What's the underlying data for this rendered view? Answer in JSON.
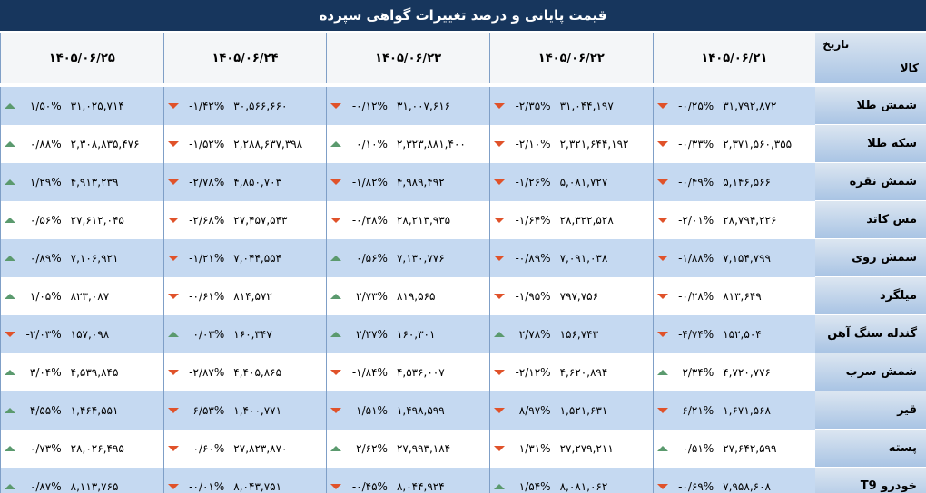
{
  "title": "قیمت پایانی و درصد تغییرات گواهی سپرده",
  "header": {
    "date_label": "تاریخ",
    "item_label": "کالا",
    "dates": [
      "۱۴۰۵/۰۶/۲۱",
      "۱۴۰۵/۰۶/۲۲",
      "۱۴۰۵/۰۶/۲۳",
      "۱۴۰۵/۰۶/۲۴",
      "۱۴۰۵/۰۶/۲۵"
    ]
  },
  "rows": [
    {
      "name": "شمش طلا",
      "cells": [
        {
          "price": "۳۱,۷۹۲,۸۷۲",
          "change": "-۰/۲۵%"
        },
        {
          "price": "۳۱,۰۴۴,۱۹۷",
          "change": "-۲/۳۵%"
        },
        {
          "price": "۳۱,۰۰۷,۶۱۶",
          "change": "-۰/۱۲%"
        },
        {
          "price": "۳۰,۵۶۶,۶۶۰",
          "change": "-۱/۴۲%"
        },
        {
          "price": "۳۱,۰۲۵,۷۱۴",
          "change": "۱/۵۰%"
        }
      ]
    },
    {
      "name": "سکه طلا",
      "cells": [
        {
          "price": "۲,۳۷۱,۵۶۰,۳۵۵",
          "change": "-۰/۳۳%"
        },
        {
          "price": "۲,۳۲۱,۶۴۴,۱۹۲",
          "change": "-۲/۱۰%"
        },
        {
          "price": "۲,۳۲۳,۸۸۱,۴۰۰",
          "change": "۰/۱۰%"
        },
        {
          "price": "۲,۲۸۸,۶۳۷,۳۹۸",
          "change": "-۱/۵۲%"
        },
        {
          "price": "۲,۳۰۸,۸۳۵,۴۷۶",
          "change": "۰/۸۸%"
        }
      ]
    },
    {
      "name": "شمش نقره",
      "cells": [
        {
          "price": "۵,۱۴۶,۵۶۶",
          "change": "-۰/۴۹%"
        },
        {
          "price": "۵,۰۸۱,۷۲۷",
          "change": "-۱/۲۶%"
        },
        {
          "price": "۴,۹۸۹,۴۹۲",
          "change": "-۱/۸۲%"
        },
        {
          "price": "۴,۸۵۰,۷۰۳",
          "change": "-۲/۷۸%"
        },
        {
          "price": "۴,۹۱۳,۲۳۹",
          "change": "۱/۲۹%"
        }
      ]
    },
    {
      "name": "مس کاتد",
      "cells": [
        {
          "price": "۲۸,۷۹۴,۲۲۶",
          "change": "-۲/۰۱%"
        },
        {
          "price": "۲۸,۳۲۲,۵۲۸",
          "change": "-۱/۶۴%"
        },
        {
          "price": "۲۸,۲۱۳,۹۳۵",
          "change": "-۰/۳۸%"
        },
        {
          "price": "۲۷,۴۵۷,۵۴۳",
          "change": "-۲/۶۸%"
        },
        {
          "price": "۲۷,۶۱۲,۰۴۵",
          "change": "۰/۵۶%"
        }
      ]
    },
    {
      "name": "شمش روی",
      "cells": [
        {
          "price": "۷,۱۵۴,۷۹۹",
          "change": "-۱/۸۸%"
        },
        {
          "price": "۷,۰۹۱,۰۳۸",
          "change": "-۰/۸۹%"
        },
        {
          "price": "۷,۱۳۰,۷۷۶",
          "change": "۰/۵۶%"
        },
        {
          "price": "۷,۰۴۴,۵۵۴",
          "change": "-۱/۲۱%"
        },
        {
          "price": "۷,۱۰۶,۹۲۱",
          "change": "۰/۸۹%"
        }
      ]
    },
    {
      "name": "میلگرد",
      "cells": [
        {
          "price": "۸۱۳,۶۴۹",
          "change": "-۰/۲۸%"
        },
        {
          "price": "۷۹۷,۷۵۶",
          "change": "-۱/۹۵%"
        },
        {
          "price": "۸۱۹,۵۶۵",
          "change": "۲/۷۳%"
        },
        {
          "price": "۸۱۴,۵۷۲",
          "change": "-۰/۶۱%"
        },
        {
          "price": "۸۲۳,۰۸۷",
          "change": "۱/۰۵%"
        }
      ]
    },
    {
      "name": "گندله سنگ آهن",
      "cells": [
        {
          "price": "۱۵۲,۵۰۴",
          "change": "-۴/۷۴%"
        },
        {
          "price": "۱۵۶,۷۴۳",
          "change": "۲/۷۸%"
        },
        {
          "price": "۱۶۰,۳۰۱",
          "change": "۲/۲۷%"
        },
        {
          "price": "۱۶۰,۳۴۷",
          "change": "۰/۰۳%"
        },
        {
          "price": "۱۵۷,۰۹۸",
          "change": "-۲/۰۳%"
        }
      ]
    },
    {
      "name": "شمش سرب",
      "cells": [
        {
          "price": "۴,۷۲۰,۷۷۶",
          "change": "۲/۳۴%"
        },
        {
          "price": "۴,۶۲۰,۸۹۴",
          "change": "-۲/۱۲%"
        },
        {
          "price": "۴,۵۳۶,۰۰۷",
          "change": "-۱/۸۴%"
        },
        {
          "price": "۴,۴۰۵,۸۶۵",
          "change": "-۲/۸۷%"
        },
        {
          "price": "۴,۵۳۹,۸۴۵",
          "change": "۳/۰۴%"
        }
      ]
    },
    {
      "name": "قیر",
      "cells": [
        {
          "price": "۱,۶۷۱,۵۶۸",
          "change": "-۶/۲۱%"
        },
        {
          "price": "۱,۵۲۱,۶۳۱",
          "change": "-۸/۹۷%"
        },
        {
          "price": "۱,۴۹۸,۵۹۹",
          "change": "-۱/۵۱%"
        },
        {
          "price": "۱,۴۰۰,۷۷۱",
          "change": "-۶/۵۳%"
        },
        {
          "price": "۱,۴۶۴,۵۵۱",
          "change": "۴/۵۵%"
        }
      ]
    },
    {
      "name": "پسته",
      "cells": [
        {
          "price": "۲۷,۶۴۲,۵۹۹",
          "change": "۰/۵۱%"
        },
        {
          "price": "۲۷,۲۷۹,۲۱۱",
          "change": "-۱/۳۱%"
        },
        {
          "price": "۲۷,۹۹۳,۱۸۴",
          "change": "۲/۶۲%"
        },
        {
          "price": "۲۷,۸۲۳,۸۷۰",
          "change": "-۰/۶۰%"
        },
        {
          "price": "۲۸,۰۲۶,۴۹۵",
          "change": "۰/۷۳%"
        }
      ]
    },
    {
      "name": "خودرو T9",
      "cells": [
        {
          "price": "۷,۹۵۸,۶۰۸",
          "change": "-۰/۶۹%"
        },
        {
          "price": "۸,۰۸۱,۰۶۲",
          "change": "۱/۵۴%"
        },
        {
          "price": "۸,۰۴۴,۹۲۴",
          "change": "-۰/۴۵%"
        },
        {
          "price": "۸,۰۴۳,۷۵۱",
          "change": "-۰/۰۱%"
        },
        {
          "price": "۸,۱۱۳,۷۶۵",
          "change": "۰/۸۷%"
        }
      ]
    }
  ]
}
